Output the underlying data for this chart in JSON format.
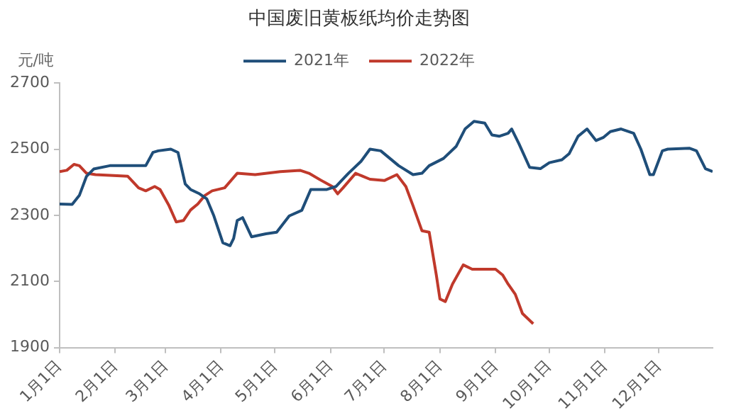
{
  "chart_data": {
    "type": "line",
    "title": "中国废旧黄板纸均价走势图",
    "ylabel": "元/吨",
    "xlim": [
      "--01-01",
      "--12-31"
    ],
    "xticks": [
      {
        "value": "--01-01",
        "label": "1月1日"
      },
      {
        "value": "--02-01",
        "label": "2月1日"
      },
      {
        "value": "--03-01",
        "label": "3月1日"
      },
      {
        "value": "--04-01",
        "label": "4月1日"
      },
      {
        "value": "--05-01",
        "label": "5月1日"
      },
      {
        "value": "--06-01",
        "label": "6月1日"
      },
      {
        "value": "--07-01",
        "label": "7月1日"
      },
      {
        "value": "--08-01",
        "label": "8月1日"
      },
      {
        "value": "--09-01",
        "label": "9月1日"
      },
      {
        "value": "--10-01",
        "label": "10月1日"
      },
      {
        "value": "--11-01",
        "label": "11月1日"
      },
      {
        "value": "--12-01",
        "label": "12月1日"
      }
    ],
    "ylim": [
      1900,
      2700
    ],
    "yticks": [
      1900,
      2100,
      2300,
      2500,
      2700
    ],
    "grid": false,
    "legend": "top",
    "marker": "none",
    "line_style": "solid",
    "series": [
      {
        "name": "2021年",
        "color": "#1f4e79",
        "x": [
          "--01-01",
          "--01-08",
          "--01-12",
          "--01-16",
          "--01-20",
          "--01-29",
          "--02-18",
          "--02-22",
          "--02-25",
          "--03-04",
          "--03-08",
          "--03-12",
          "--03-15",
          "--03-20",
          "--03-24",
          "--03-28",
          "--04-02",
          "--04-06",
          "--04-08",
          "--04-10",
          "--04-13",
          "--04-18",
          "--04-26",
          "--05-02",
          "--05-09",
          "--05-16",
          "--05-21",
          "--05-30",
          "--06-04",
          "--06-11",
          "--06-18",
          "--06-23",
          "--06-29",
          "--07-09",
          "--07-17",
          "--07-22",
          "--07-26",
          "--08-03",
          "--08-10",
          "--08-15",
          "--08-20",
          "--08-26",
          "--08-30",
          "--09-03",
          "--09-08",
          "--09-10",
          "--09-14",
          "--09-20",
          "--09-26",
          "--10-01",
          "--10-08",
          "--10-12",
          "--10-17",
          "--10-22",
          "--10-27",
          "--10-31",
          "--11-04",
          "--11-10",
          "--11-17",
          "--11-21",
          "--11-26",
          "--11-28",
          "--12-03",
          "--12-06",
          "--12-18",
          "--12-22",
          "--12-27",
          "--12-31"
        ],
        "values": [
          2334,
          2333,
          2360,
          2418,
          2440,
          2450,
          2450,
          2490,
          2495,
          2500,
          2490,
          2395,
          2378,
          2365,
          2350,
          2298,
          2217,
          2208,
          2230,
          2284,
          2293,
          2235,
          2244,
          2249,
          2298,
          2315,
          2378,
          2378,
          2387,
          2427,
          2463,
          2500,
          2495,
          2450,
          2423,
          2427,
          2450,
          2472,
          2508,
          2561,
          2584,
          2579,
          2543,
          2539,
          2548,
          2561,
          2517,
          2445,
          2441,
          2459,
          2468,
          2486,
          2539,
          2561,
          2526,
          2535,
          2553,
          2561,
          2548,
          2500,
          2423,
          2423,
          2495,
          2500,
          2503,
          2495,
          2441,
          2432
        ]
      },
      {
        "name": "2022年",
        "color": "#c0392b",
        "x": [
          "--01-01",
          "--01-05",
          "--01-09",
          "--01-12",
          "--01-16",
          "--01-21",
          "--02-08",
          "--02-14",
          "--02-18",
          "--02-23",
          "--02-26",
          "--03-03",
          "--03-07",
          "--03-11",
          "--03-15",
          "--03-19",
          "--03-23",
          "--03-27",
          "--04-03",
          "--04-10",
          "--04-20",
          "--05-04",
          "--05-15",
          "--05-20",
          "--05-27",
          "--06-02",
          "--06-05",
          "--06-08",
          "--06-15",
          "--06-23",
          "--07-01",
          "--07-08",
          "--07-13",
          "--07-17",
          "--07-22",
          "--07-26",
          "--07-30",
          "--08-01",
          "--08-04",
          "--08-08",
          "--08-14",
          "--08-19",
          "--08-24",
          "--09-01",
          "--09-05",
          "--09-08",
          "--09-12",
          "--09-16",
          "--09-22"
        ],
        "values": [
          2432,
          2436,
          2454,
          2450,
          2427,
          2423,
          2418,
          2383,
          2374,
          2387,
          2378,
          2329,
          2280,
          2284,
          2316,
          2334,
          2360,
          2374,
          2383,
          2427,
          2423,
          2432,
          2436,
          2427,
          2405,
          2387,
          2365,
          2383,
          2427,
          2409,
          2405,
          2423,
          2387,
          2329,
          2253,
          2249,
          2119,
          2047,
          2039,
          2092,
          2150,
          2137,
          2137,
          2137,
          2119,
          2092,
          2061,
          2003,
          1972
        ]
      }
    ]
  }
}
